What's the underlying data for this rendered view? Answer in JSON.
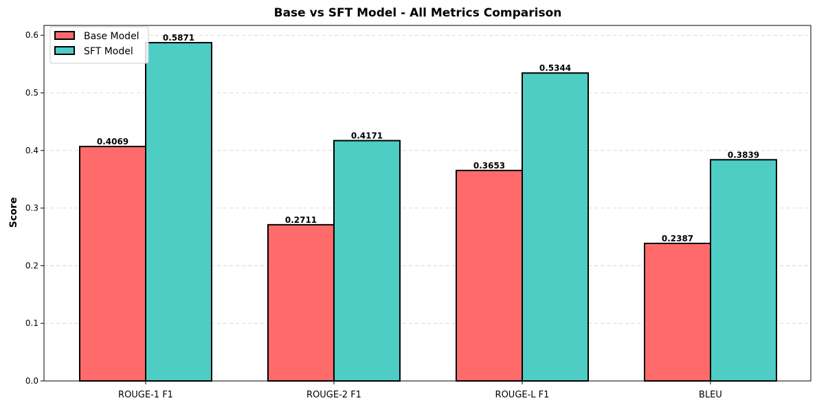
{
  "chart_data": {
    "type": "bar",
    "title": "Base vs SFT Model - All Metrics Comparison",
    "xlabel": "",
    "ylabel": "Score",
    "categories": [
      "ROUGE-1 F1",
      "ROUGE-2 F1",
      "ROUGE-L F1",
      "BLEU"
    ],
    "series": [
      {
        "name": "Base Model",
        "color": "#ff6b6b",
        "values": [
          0.4069,
          0.2711,
          0.3653,
          0.2387
        ],
        "labels": [
          "0.4069",
          "0.2711",
          "0.3653",
          "0.2387"
        ]
      },
      {
        "name": "SFT Model",
        "color": "#4ecdc4",
        "values": [
          0.5871,
          0.4171,
          0.5344,
          0.3839
        ],
        "labels": [
          "0.5871",
          "0.4171",
          "0.5344",
          "0.3839"
        ]
      }
    ],
    "ylim": [
      0,
      0.617
    ],
    "yticks": [
      0.0,
      0.1,
      0.2,
      0.3,
      0.4,
      0.5,
      0.6
    ],
    "ytick_labels": [
      "0.0",
      "0.1",
      "0.2",
      "0.3",
      "0.4",
      "0.5",
      "0.6"
    ],
    "grid": "y-dashed",
    "legend_position": "top-left"
  }
}
